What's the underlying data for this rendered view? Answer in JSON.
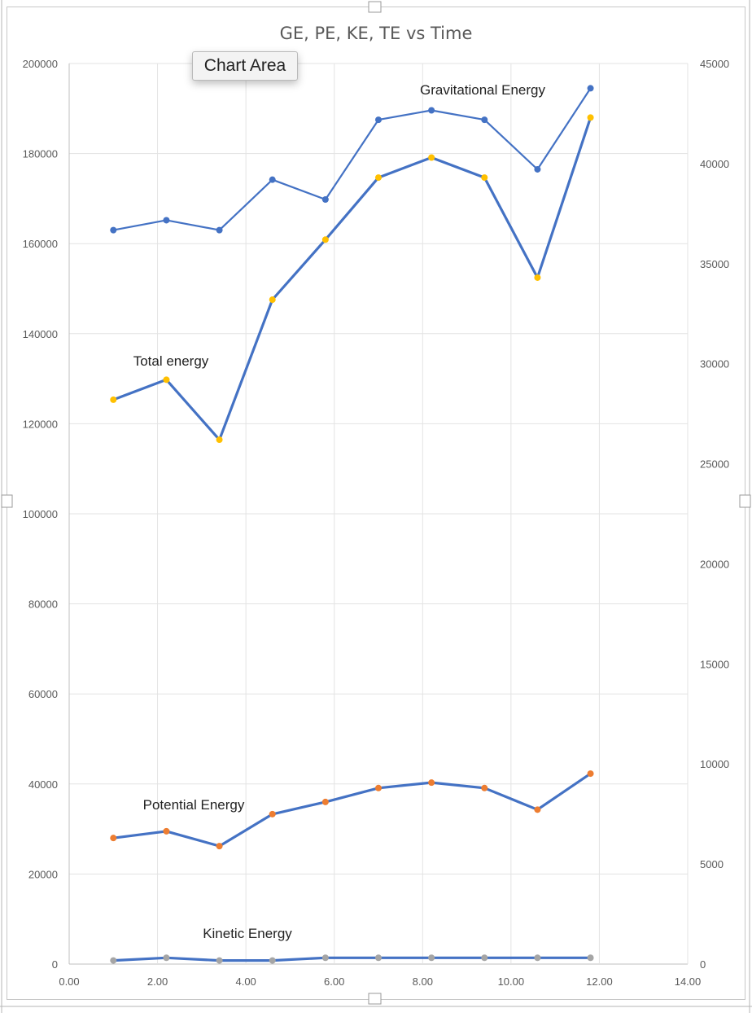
{
  "tooltip": {
    "label": "Chart Area"
  },
  "chart_data": {
    "type": "line",
    "title": "GE, PE, KE, TE vs Time",
    "xlim": [
      0,
      14
    ],
    "x_ticks": [
      "0.00",
      "2.00",
      "4.00",
      "6.00",
      "8.00",
      "10.00",
      "12.00",
      "14.00"
    ],
    "y_left_lim": [
      0,
      200000
    ],
    "y_left_ticks": [
      "0",
      "20000",
      "40000",
      "60000",
      "80000",
      "100000",
      "120000",
      "140000",
      "160000",
      "180000",
      "200000"
    ],
    "y_right_lim": [
      0,
      45000
    ],
    "y_right_ticks": [
      "0",
      "5000",
      "10000",
      "15000",
      "20000",
      "25000",
      "30000",
      "35000",
      "40000",
      "45000"
    ],
    "grid": true,
    "x": [
      1.0,
      2.2,
      3.4,
      4.6,
      5.8,
      7.0,
      8.2,
      9.4,
      10.6,
      11.8
    ],
    "series": [
      {
        "name": "Gravitational Energy",
        "axis": "left",
        "marker_color": "#4472c4",
        "line_color": "#4472c4",
        "values": [
          163000,
          165200,
          163000,
          174200,
          169800,
          187500,
          189600,
          187500,
          176500,
          194500
        ]
      },
      {
        "name": "Total energy",
        "axis": "right",
        "marker_color": "#ffc000",
        "line_color": "#4472c4",
        "values": [
          28200,
          29200,
          26200,
          33200,
          36200,
          39300,
          40300,
          39300,
          34300,
          42300
        ]
      },
      {
        "name": "Potential Energy",
        "axis": "left",
        "marker_color": "#ed7d31",
        "line_color": "#4472c4",
        "values": [
          28000,
          29500,
          26200,
          33300,
          36000,
          39100,
          40300,
          39100,
          34300,
          42300
        ]
      },
      {
        "name": "Kinetic Energy",
        "axis": "left",
        "marker_color": "#a5a5a5",
        "line_color": "#4472c4",
        "values": [
          800,
          1400,
          800,
          800,
          1400,
          1400,
          1400,
          1400,
          1400,
          1400
        ]
      }
    ]
  }
}
